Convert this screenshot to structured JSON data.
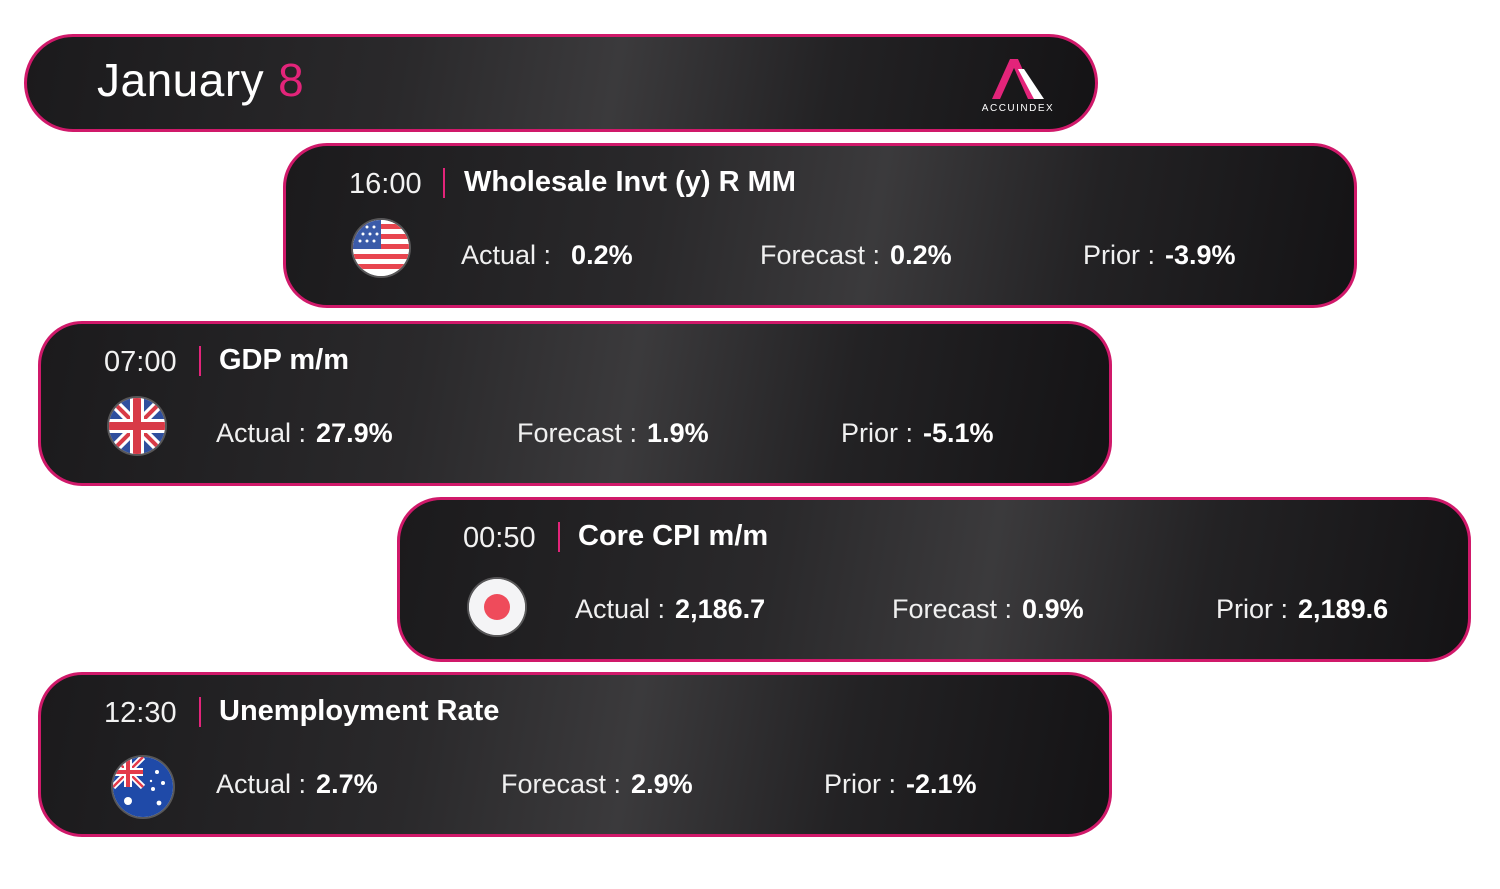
{
  "header": {
    "month": "January",
    "day": "8",
    "brand": "ACCUINDEX"
  },
  "labels": {
    "actual": "Actual :",
    "forecast": "Forecast :",
    "prior": "Prior :"
  },
  "events": [
    {
      "time": "16:00",
      "name": "Wholesale Invt (y) R MM",
      "country_icon": "us-flag-icon",
      "actual": "0.2%",
      "forecast": "0.2%",
      "prior": "-3.9%"
    },
    {
      "time": "07:00",
      "name": "GDP m/m",
      "country_icon": "uk-flag-icon",
      "actual": "27.9%",
      "forecast": "1.9%",
      "prior": "-5.1%"
    },
    {
      "time": "00:50",
      "name": "Core CPI m/m",
      "country_icon": "japan-flag-icon",
      "actual": "2,186.7",
      "forecast": "0.9%",
      "prior": "2,189.6"
    },
    {
      "time": "12:30",
      "name": "Unemployment Rate",
      "country_icon": "australia-flag-icon",
      "actual": "2.7%",
      "forecast": "2.9%",
      "prior": "-2.1%"
    }
  ],
  "colors": {
    "accent": "#e3247a",
    "card_bg": "#1e1d1f",
    "border": "#d0196a"
  }
}
